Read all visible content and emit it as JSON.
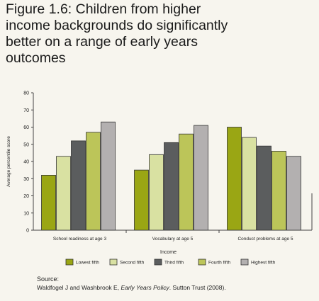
{
  "figure": {
    "title_lines": [
      "Figure 1.6: Children from higher",
      "income backgrounds do significantly",
      "better on a range of early years",
      "outcomes"
    ]
  },
  "source": {
    "label": "Source:",
    "text_before": "Waldfogel J and Washbrook E, ",
    "text_italic": "Early Years Policy",
    "text_after": ". Sutton Trust (2008)."
  },
  "chart_data": {
    "type": "bar",
    "title": "",
    "xlabel": "Income",
    "ylabel": "Average percentile score",
    "ylim": [
      0,
      80
    ],
    "yticks": [
      0,
      10,
      20,
      30,
      40,
      50,
      60,
      70,
      80
    ],
    "grid": false,
    "legend_position": "bottom",
    "categories": [
      "School readiness at age 3",
      "Vocabulary at age 5",
      "Conduct problems at age 5"
    ],
    "series": [
      {
        "name": "Lowest fifth",
        "color": "#9aa614",
        "values": [
          32,
          35,
          60
        ]
      },
      {
        "name": "Second fifth",
        "color": "#d9e1a2",
        "values": [
          43,
          44,
          54
        ]
      },
      {
        "name": "Third fifth",
        "color": "#5b5d5e",
        "values": [
          52,
          51,
          49
        ]
      },
      {
        "name": "Fourth fifth",
        "color": "#bcc559",
        "values": [
          57,
          56,
          46
        ]
      },
      {
        "name": "Highest fifth",
        "color": "#b3b0b0",
        "values": [
          63,
          61,
          43
        ]
      }
    ]
  }
}
